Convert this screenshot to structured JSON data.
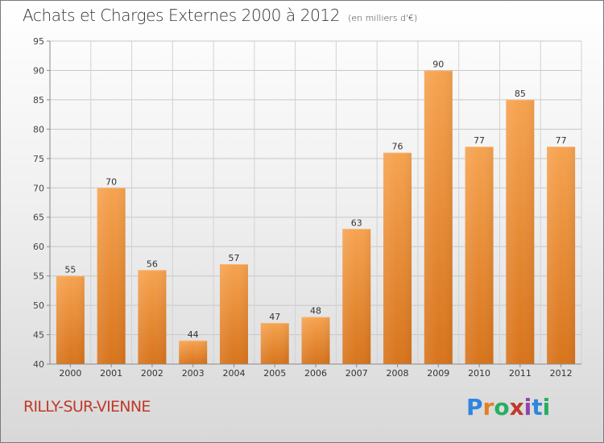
{
  "header": {
    "title": "Achats et Charges Externes 2000 à 2012",
    "subtitle": "(en milliers d'€)"
  },
  "footer": {
    "commune": "RILLY-SUR-VIENNE",
    "logo": {
      "letters": [
        "P",
        "r",
        "o",
        "x",
        "i",
        "t",
        "i"
      ],
      "colors": [
        "#2e86de",
        "#e67e22",
        "#27ae60",
        "#c0392b",
        "#8e44ad",
        "#2e86de",
        "#27ae60"
      ]
    }
  },
  "chart_data": {
    "type": "bar",
    "title": "Achats et Charges Externes 2000 à 2012",
    "subtitle": "(en milliers d'€)",
    "categories": [
      "2000",
      "2001",
      "2002",
      "2003",
      "2004",
      "2005",
      "2006",
      "2007",
      "2008",
      "2009",
      "2010",
      "2011",
      "2012"
    ],
    "values": [
      55,
      70,
      56,
      44,
      57,
      47,
      48,
      63,
      76,
      90,
      77,
      85,
      77
    ],
    "ylim": [
      40,
      95
    ],
    "yticks": [
      40,
      45,
      50,
      55,
      60,
      65,
      70,
      75,
      80,
      85,
      90,
      95
    ],
    "grid": true,
    "bar_color": "#f0963c",
    "bar_color_dark": "#d8741c"
  }
}
